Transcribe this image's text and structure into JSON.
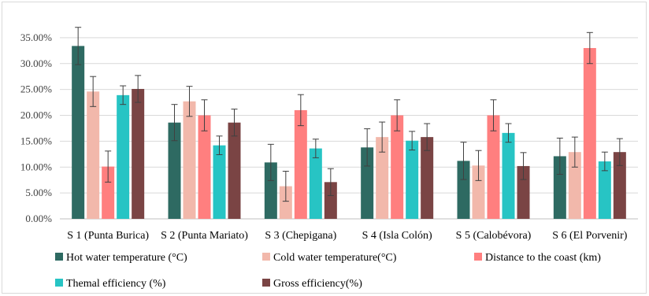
{
  "chart_data": {
    "type": "bar",
    "title": "",
    "xlabel": "",
    "ylabel": "",
    "ylim": [
      0,
      0.4
    ],
    "yticks": [
      "0.00%",
      "5.00%",
      "10.00%",
      "15.00%",
      "20.00%",
      "25.00%",
      "30.00%",
      "35.00%"
    ],
    "ytick_values": [
      0,
      0.05,
      0.1,
      0.15,
      0.2,
      0.25,
      0.3,
      0.35
    ],
    "grid": true,
    "legend_position": "bottom",
    "categories": [
      "S 1 (Punta Burica)",
      "S 2 (Punta Mariato)",
      "S 3 (Chepigana)",
      "S 4 (Isla Colón)",
      "S 5 (Calobévora)",
      "S 6 (El Porvenir)"
    ],
    "series": [
      {
        "name": "Hot water temperature (°C)",
        "color": "#2e6a62",
        "values": [
          0.334,
          0.186,
          0.109,
          0.138,
          0.112,
          0.121
        ],
        "errors": [
          0.036,
          0.035,
          0.035,
          0.036,
          0.036,
          0.035
        ]
      },
      {
        "name": "Cold water temperature(°C)",
        "color": "#f2b8ab",
        "values": [
          0.246,
          0.227,
          0.063,
          0.158,
          0.103,
          0.129
        ],
        "errors": [
          0.029,
          0.029,
          0.029,
          0.029,
          0.029,
          0.029
        ]
      },
      {
        "name": "Distance to the coast (km)",
        "color": "#ff7f7f",
        "values": [
          0.101,
          0.2,
          0.21,
          0.2,
          0.2,
          0.33
        ],
        "errors": [
          0.03,
          0.03,
          0.03,
          0.03,
          0.03,
          0.03
        ]
      },
      {
        "name": "Themal efficiency (%)",
        "color": "#27c4c4",
        "values": [
          0.239,
          0.142,
          0.136,
          0.151,
          0.166,
          0.111
        ],
        "errors": [
          0.018,
          0.018,
          0.018,
          0.018,
          0.018,
          0.018
        ]
      },
      {
        "name": "Gross efficiency(%)",
        "color": "#7a4444",
        "values": [
          0.251,
          0.186,
          0.071,
          0.158,
          0.102,
          0.129
        ],
        "errors": [
          0.026,
          0.026,
          0.026,
          0.026,
          0.026,
          0.026
        ]
      }
    ]
  }
}
